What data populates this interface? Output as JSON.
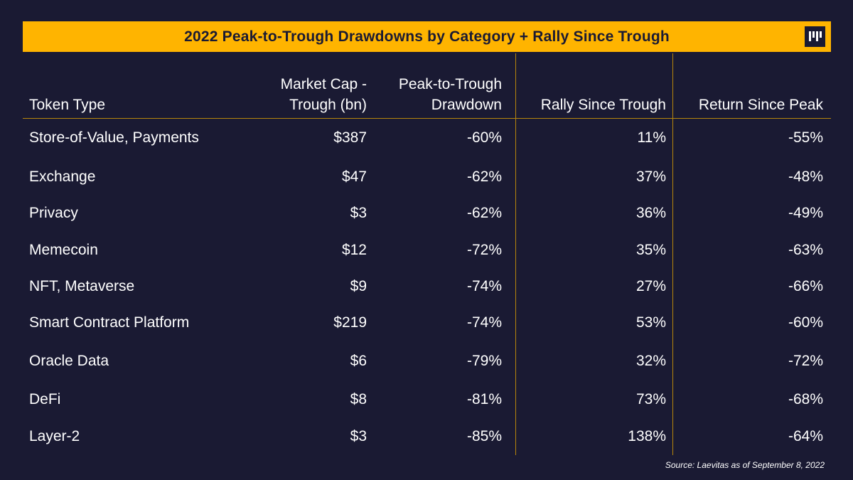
{
  "chart_data": {
    "type": "table",
    "title": "2022 Peak-to-Trough Drawdowns by Category + Rally Since Trough",
    "columns": [
      {
        "key": "token_type",
        "line1": "",
        "line2": "Token Type"
      },
      {
        "key": "market_cap",
        "line1": "Market Cap -",
        "line2": "Trough (bn)"
      },
      {
        "key": "drawdown",
        "line1": "Peak-to-Trough",
        "line2": "Drawdown"
      },
      {
        "key": "rally",
        "line1": "",
        "line2": "Rally Since Trough"
      },
      {
        "key": "return",
        "line1": "",
        "line2": "Return Since Peak"
      }
    ],
    "rows": [
      {
        "token_type": "Store-of-Value, Payments",
        "market_cap": "$387",
        "drawdown": "-60%",
        "rally": "11%",
        "return": "-55%"
      },
      {
        "token_type": "Exchange",
        "market_cap": "$47",
        "drawdown": "-62%",
        "rally": "37%",
        "return": "-48%"
      },
      {
        "token_type": "Privacy",
        "market_cap": "$3",
        "drawdown": "-62%",
        "rally": "36%",
        "return": "-49%"
      },
      {
        "token_type": "Memecoin",
        "market_cap": "$12",
        "drawdown": "-72%",
        "rally": "35%",
        "return": "-63%"
      },
      {
        "token_type": "NFT, Metaverse",
        "market_cap": "$9",
        "drawdown": "-74%",
        "rally": "27%",
        "return": "-66%"
      },
      {
        "token_type": "Smart Contract Platform",
        "market_cap": "$219",
        "drawdown": "-74%",
        "rally": "53%",
        "return": "-60%"
      },
      {
        "token_type": "Oracle Data",
        "market_cap": "$6",
        "drawdown": "-79%",
        "rally": "32%",
        "return": "-72%"
      },
      {
        "token_type": "DeFi",
        "market_cap": "$8",
        "drawdown": "-81%",
        "rally": "73%",
        "return": "-68%"
      },
      {
        "token_type": "Layer-2",
        "market_cap": "$3",
        "drawdown": "-85%",
        "rally": "138%",
        "return": "-64%"
      }
    ],
    "source": "Source:  Laevitas as of September 8, 2022"
  },
  "colors": {
    "background": "#1a1a33",
    "accent": "#ffb400",
    "rule": "#b8860b",
    "text": "#ffffff"
  },
  "logo": {
    "icon": "pantera-logo-icon"
  }
}
